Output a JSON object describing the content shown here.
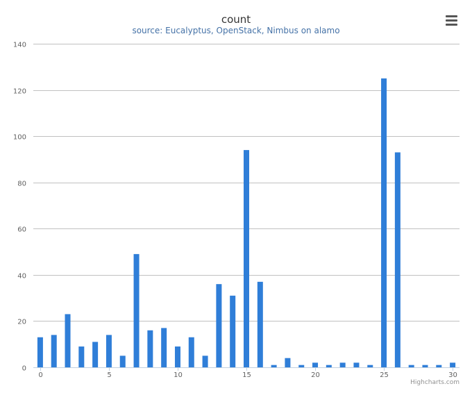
{
  "chart_data": {
    "type": "bar",
    "title": "count",
    "subtitle": "source: Eucalyptus, OpenStack, Nimbus on alamo",
    "xlabel": "",
    "ylabel": "",
    "x": [
      0,
      1,
      2,
      3,
      4,
      5,
      6,
      7,
      8,
      9,
      10,
      11,
      12,
      13,
      14,
      15,
      16,
      17,
      18,
      19,
      20,
      21,
      22,
      23,
      24,
      25,
      26,
      27,
      28,
      29,
      30
    ],
    "values": [
      13,
      14,
      23,
      9,
      11,
      14,
      5,
      49,
      16,
      17,
      9,
      13,
      5,
      36,
      31,
      94,
      37,
      1,
      4,
      1,
      2,
      1,
      2,
      2,
      1,
      125,
      93,
      1,
      1,
      1,
      2
    ],
    "xlim": [
      -0.5,
      30.5
    ],
    "ylim": [
      0,
      140
    ],
    "x_ticks": [
      "0",
      "5",
      "10",
      "15",
      "20",
      "25",
      "30"
    ],
    "x_tick_values": [
      0,
      5,
      10,
      15,
      20,
      25,
      30
    ],
    "y_ticks": [
      "0",
      "20",
      "40",
      "60",
      "80",
      "100",
      "120",
      "140"
    ],
    "y_tick_values": [
      0,
      20,
      40,
      60,
      80,
      100,
      120,
      140
    ],
    "grid": true,
    "legend": "none",
    "bar_color": "#2f7ed8"
  },
  "credits": "Highcharts.com",
  "menu_icon": "hamburger-menu-icon"
}
